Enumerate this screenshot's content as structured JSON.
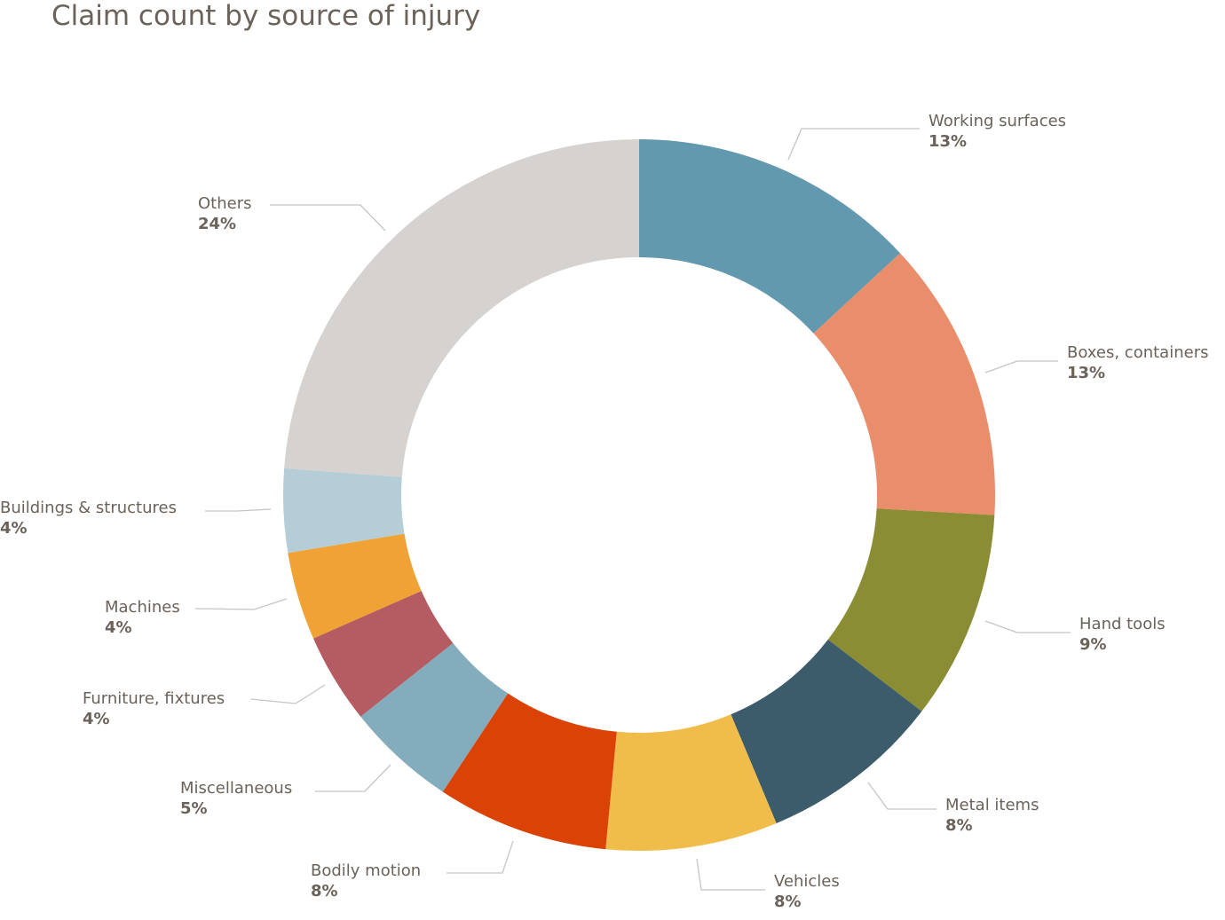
{
  "chart_data": {
    "type": "pie",
    "variant": "donut",
    "title": "Claim count by source of injury",
    "start": "top, clockwise",
    "slices": [
      {
        "name": "Working surfaces",
        "value": 13.1,
        "label": "13%",
        "color": "#6399ae"
      },
      {
        "name": "Boxes, containers",
        "value": 12.8,
        "label": "13%",
        "color": "#ea8d6b"
      },
      {
        "name": "Hand tools",
        "value": 9.5,
        "label": "9%",
        "color": "#8a8d33"
      },
      {
        "name": "Metal items",
        "value": 8.3,
        "label": "8%",
        "color": "#3c5c6b"
      },
      {
        "name": "Vehicles",
        "value": 7.8,
        "label": "8%",
        "color": "#f0bd4b"
      },
      {
        "name": "Bodily motion",
        "value": 7.8,
        "label": "8%",
        "color": "#db4306"
      },
      {
        "name": "Miscellaneous",
        "value": 5.0,
        "label": "5%",
        "color": "#83acbd"
      },
      {
        "name": "Furniture, fixtures",
        "value": 4.1,
        "label": "4%",
        "color": "#b55c62"
      },
      {
        "name": "Machines",
        "value": 4.0,
        "label": "4%",
        "color": "#f0a334"
      },
      {
        "name": "Buildings & structures",
        "value": 3.8,
        "label": "4%",
        "color": "#b5cdd6"
      },
      {
        "name": "Others",
        "value": 23.8,
        "label": "24%",
        "color": "#d5d2cf"
      }
    ]
  }
}
